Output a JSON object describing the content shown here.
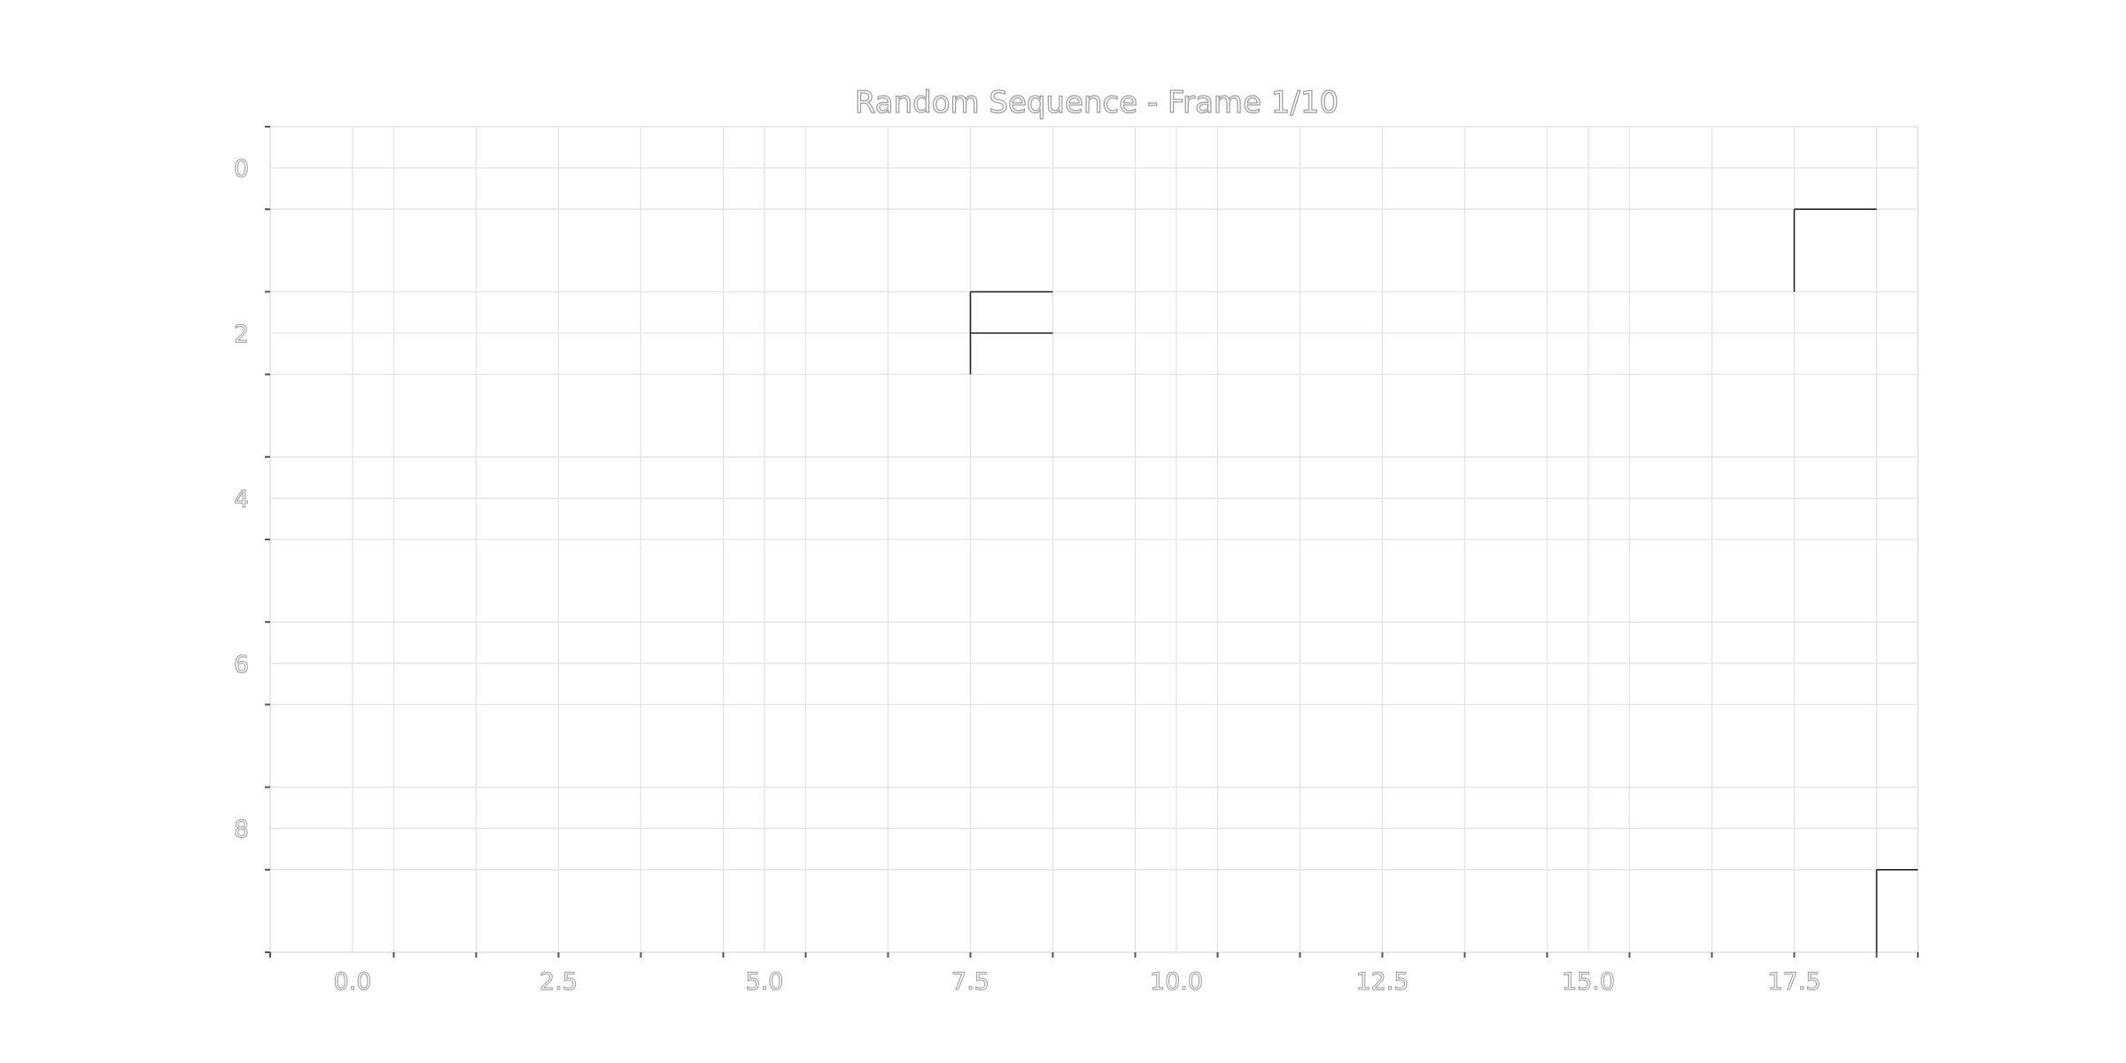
{
  "chart_data": {
    "type": "heatmap",
    "title": "Random Sequence - Frame 1/10",
    "xlabel": "",
    "ylabel": "",
    "xlim": [
      -1,
      19
    ],
    "ylim": [
      9.5,
      -0.5
    ],
    "y_inverted": true,
    "grid": true,
    "x_ticks": [
      0.0,
      2.5,
      5.0,
      7.5,
      10.0,
      12.5,
      15.0,
      17.5
    ],
    "x_tick_labels": [
      "0.0",
      "2.5",
      "5.0",
      "7.5",
      "10.0",
      "12.5",
      "15.0",
      "17.5"
    ],
    "y_ticks": [
      0,
      2,
      4,
      6,
      8
    ],
    "y_tick_labels": [
      "0",
      "2",
      "4",
      "6",
      "8"
    ],
    "x_minor_ticks": [
      -1,
      0.5,
      1.5,
      2.5,
      3.5,
      4.5,
      5.5,
      6.5,
      7.5,
      8.5,
      9.5,
      10.5,
      11.5,
      12.5,
      13.5,
      14.5,
      15.5,
      16.5,
      17.5,
      18.5,
      19
    ],
    "y_minor_ticks": [
      0.5,
      1.5,
      2.5,
      3.5,
      4.5,
      5.5,
      6.5,
      7.5,
      8.5,
      9.5
    ],
    "cell_edges": [
      {
        "x": 7.5,
        "y": 1.5,
        "to_x": 8.5,
        "to_y": 1.5
      },
      {
        "x": 7.5,
        "y": 1.5,
        "to_x": 7.5,
        "to_y": 2.5
      },
      {
        "x": 7.5,
        "y": 2.0,
        "to_x": 8.5,
        "to_y": 2.0
      },
      {
        "x": 17.5,
        "y": 0.5,
        "to_x": 18.5,
        "to_y": 0.5
      },
      {
        "x": 17.5,
        "y": 0.5,
        "to_x": 17.5,
        "to_y": 1.5
      },
      {
        "x": 18.5,
        "y": 8.5,
        "to_x": 19,
        "to_y": 8.5
      },
      {
        "x": 18.5,
        "y": 8.5,
        "to_x": 18.5,
        "to_y": 9.5
      }
    ]
  }
}
